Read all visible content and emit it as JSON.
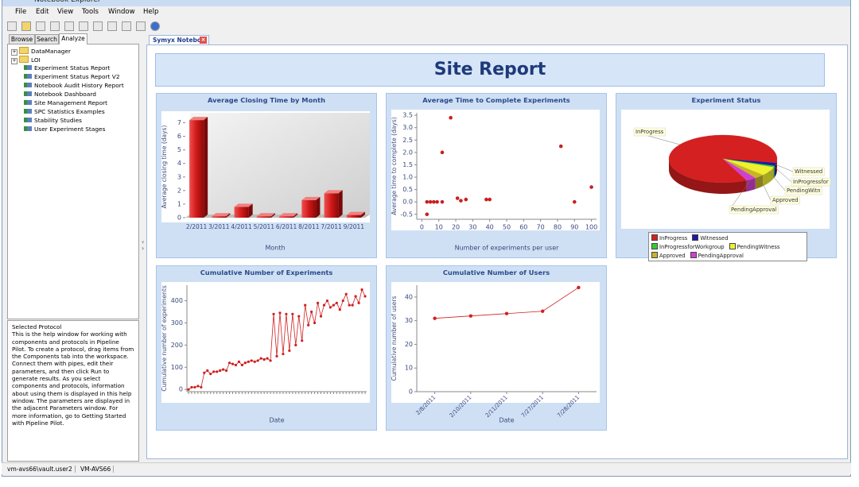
{
  "window": {
    "title": "Notebook Explorer"
  },
  "menu": [
    "File",
    "Edit",
    "View",
    "Tools",
    "Window",
    "Help"
  ],
  "left_tabs": [
    "Browse",
    "Search",
    "Analyze"
  ],
  "tree": {
    "folders": [
      "DataManager",
      "LOI"
    ],
    "protocols": [
      "Experiment Status Report",
      "Experiment Status Report V2",
      "Notebook Audit History Report",
      "Notebook Dashboard",
      "Site Management Report",
      "SPC Statistics Examples",
      "Stability Studies",
      "User Experiment Stages"
    ]
  },
  "help": {
    "title": "Selected Protocol",
    "text": "This is the help window for working with components and protocols in Pipeline Pilot. To create a protocol, drag items from the Components tab into the workspace. Connect them with pipes, edit their parameters, and then click Run to generate results. As you select components and protocols, information about using them is displayed in this help window. The parameters are displayed in the adjacent Parameters window. For more information, go to Getting Started with Pipeline Pilot."
  },
  "status": [
    "vm-avs66\\vault.user2",
    "VM-AVS66"
  ],
  "document_tab": "Symyx Notebo",
  "report": {
    "title": "Site Report",
    "charts": [
      {
        "type": "bar",
        "title": "Average Closing Time by Month",
        "x_label": "Month",
        "y_label": "Average closing time (days)",
        "categories": [
          "2/2011",
          "3/2011",
          "4/2011",
          "5/2011",
          "6/2011",
          "8/2011",
          "7/2011",
          "9/2011"
        ],
        "values": [
          7.2,
          0.1,
          0.8,
          0.1,
          0.1,
          1.3,
          1.8,
          0.2
        ],
        "color": "#d01818",
        "ylim": [
          0,
          7.5
        ],
        "yticks": [
          0,
          1,
          2,
          3,
          4,
          5,
          6,
          7
        ]
      },
      {
        "type": "scatter",
        "title": "Average Time to Complete Experiments",
        "x_label": "Number of experiments per user",
        "y_label": "Average time to complete (days)",
        "x": [
          3,
          3,
          5,
          7,
          9,
          12,
          12,
          17,
          21,
          23,
          26,
          38,
          40,
          82,
          90,
          100
        ],
        "values": [
          -0.5,
          0,
          0,
          0,
          0,
          0,
          2.0,
          3.4,
          0.15,
          0.05,
          0.1,
          0.1,
          0.1,
          2.25,
          0,
          0.6
        ],
        "color": "#c82020",
        "xlim": [
          -3,
          103
        ],
        "ylim": [
          -0.7,
          3.6
        ],
        "xticks": [
          0,
          10,
          20,
          30,
          40,
          50,
          60,
          70,
          80,
          90,
          100
        ],
        "yticks": [
          -0.5,
          {
            "value": 0,
            "label": "0.0"
          },
          0.5,
          {
            "value": 1,
            "label": "1.0"
          },
          1.5,
          {
            "value": 2,
            "label": "2.0"
          },
          2.5,
          {
            "value": 3,
            "label": "3.0"
          },
          3.5
        ]
      },
      {
        "type": "pie",
        "title": "Experiment Status",
        "categories": [
          "InProgress",
          "Witnessed",
          "InProgressforWorkgroup",
          "PendingWitness",
          "Approved",
          "PendingApproval"
        ],
        "values": [
          85,
          2,
          1,
          6,
          3,
          3
        ],
        "colors": [
          "#d42020",
          "#1a1aa8",
          "#33cc33",
          "#f0f030",
          "#c8b428",
          "#d040d0"
        ],
        "callouts": [
          "InProgress",
          "Witnessed",
          "InProgressfor",
          "PendingWitn",
          "Approved",
          "PendingApproval"
        ]
      },
      {
        "type": "line",
        "title": "Cumulative Number of Experiments",
        "x_label": "Date",
        "y_label": "Cumulative number of experiments",
        "categories": [
          null,
          null,
          null,
          null,
          null,
          null,
          null,
          null,
          null,
          null,
          null,
          null,
          null,
          null,
          null,
          null,
          null,
          null,
          null,
          null,
          null,
          null,
          null,
          null,
          null,
          null,
          null,
          null,
          null,
          null,
          null,
          null,
          null,
          null,
          null,
          null,
          null,
          null,
          null,
          null,
          null,
          null,
          null,
          null,
          null,
          null,
          null,
          null,
          null,
          null,
          null,
          null,
          null,
          null,
          null,
          null,
          null
        ],
        "values": [
          0,
          10,
          10,
          15,
          10,
          75,
          85,
          70,
          80,
          80,
          85,
          90,
          85,
          120,
          115,
          110,
          125,
          110,
          120,
          125,
          130,
          125,
          130,
          140,
          135,
          140,
          130,
          340,
          150,
          345,
          160,
          340,
          175,
          340,
          200,
          330,
          220,
          380,
          290,
          350,
          300,
          390,
          330,
          380,
          400,
          370,
          380,
          390,
          360,
          400,
          430,
          380,
          380,
          420,
          390,
          450,
          420
        ],
        "color": "#d02020",
        "ylim": [
          -10,
          470
        ],
        "yticks": [
          0,
          100,
          200,
          300,
          400
        ]
      },
      {
        "type": "line",
        "title": "Cumulative Number of Users",
        "x_label": "Date",
        "y_label": "Cumulative number of users",
        "categories": [
          "2/8/2011",
          "2/10/2011",
          "2/11/2011",
          "7/27/2011",
          "7/28/2011"
        ],
        "values": [
          31,
          32,
          33,
          34,
          44
        ],
        "color": "#d02020",
        "ylim": [
          0,
          45
        ],
        "yticks": [
          0,
          10,
          20,
          30,
          40
        ]
      }
    ]
  }
}
